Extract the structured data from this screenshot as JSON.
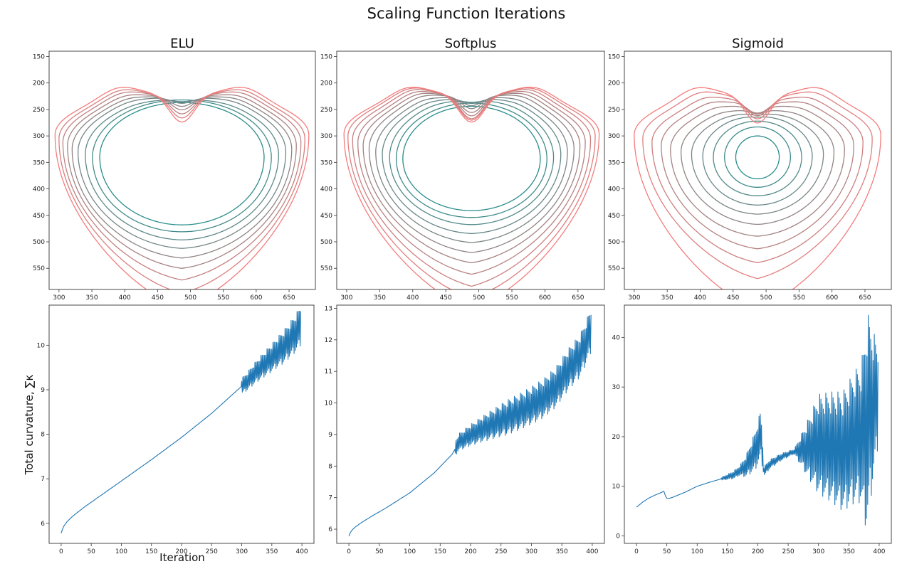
{
  "suptitle": "Scaling Function Iterations",
  "ylabel": "Total curvature, ∑κ",
  "xlabel": "Iteration",
  "colors": {
    "outer": "#f47c7c",
    "inner": "#2a8c8c",
    "series": "#1f77b4",
    "axes": "#333333"
  },
  "chart_data": [
    {
      "type": "line",
      "title": "ELU",
      "xlim": [
        285,
        690
      ],
      "ylim": [
        590,
        140
      ],
      "invert_y": true,
      "xticks": [
        300,
        350,
        400,
        450,
        500,
        550,
        600,
        650
      ],
      "yticks": [
        150,
        200,
        250,
        300,
        350,
        400,
        450,
        500,
        550
      ],
      "contours": [
        {
          "cx": 487,
          "cy": 340,
          "rx": 125,
          "top": 237,
          "bottom": 468,
          "dip": 0
        },
        {
          "cx": 487,
          "cy": 340,
          "rx": 136,
          "top": 232,
          "bottom": 481,
          "dip": 0
        },
        {
          "cx": 487,
          "cy": 335,
          "rx": 147,
          "top": 230,
          "bottom": 494,
          "dip": 0.05
        },
        {
          "cx": 487,
          "cy": 330,
          "rx": 158,
          "top": 226,
          "bottom": 506,
          "dip": 0.12
        },
        {
          "cx": 487,
          "cy": 325,
          "rx": 167,
          "top": 224,
          "bottom": 519,
          "dip": 0.2
        },
        {
          "cx": 487,
          "cy": 318,
          "rx": 174,
          "top": 222,
          "bottom": 531,
          "dip": 0.3
        },
        {
          "cx": 487,
          "cy": 312,
          "rx": 181,
          "top": 220,
          "bottom": 543,
          "dip": 0.42
        },
        {
          "cx": 487,
          "cy": 305,
          "rx": 187,
          "top": 219,
          "bottom": 556,
          "dip": 0.55
        },
        {
          "cx": 487,
          "cy": 298,
          "rx": 193,
          "top": 218,
          "bottom": 569,
          "dip": 0.7
        }
      ]
    },
    {
      "type": "line",
      "title": "Softplus",
      "xlim": [
        285,
        690
      ],
      "ylim": [
        590,
        140
      ],
      "invert_y": true,
      "xticks": [
        300,
        350,
        400,
        450,
        500,
        550,
        600,
        650
      ],
      "yticks": [
        150,
        200,
        250,
        300,
        350,
        400,
        450,
        500,
        550
      ],
      "contours": [
        {
          "cx": 489,
          "cy": 343,
          "rx": 104,
          "top": 244,
          "bottom": 441,
          "dip": 0
        },
        {
          "cx": 489,
          "cy": 343,
          "rx": 114,
          "top": 238,
          "bottom": 454,
          "dip": 0
        },
        {
          "cx": 489,
          "cy": 340,
          "rx": 124,
          "top": 232,
          "bottom": 466,
          "dip": 0.04
        },
        {
          "cx": 489,
          "cy": 335,
          "rx": 135,
          "top": 228,
          "bottom": 480,
          "dip": 0.1
        },
        {
          "cx": 489,
          "cy": 330,
          "rx": 145,
          "top": 225,
          "bottom": 493,
          "dip": 0.17
        },
        {
          "cx": 489,
          "cy": 324,
          "rx": 155,
          "top": 222,
          "bottom": 506,
          "dip": 0.26
        },
        {
          "cx": 489,
          "cy": 318,
          "rx": 164,
          "top": 221,
          "bottom": 518,
          "dip": 0.36
        },
        {
          "cx": 489,
          "cy": 312,
          "rx": 172,
          "top": 220,
          "bottom": 531,
          "dip": 0.46
        },
        {
          "cx": 489,
          "cy": 306,
          "rx": 180,
          "top": 219,
          "bottom": 544,
          "dip": 0.56
        },
        {
          "cx": 489,
          "cy": 300,
          "rx": 187,
          "top": 218,
          "bottom": 557,
          "dip": 0.64
        },
        {
          "cx": 489,
          "cy": 296,
          "rx": 193,
          "top": 218,
          "bottom": 569,
          "dip": 0.72
        }
      ]
    },
    {
      "type": "line",
      "title": "Sigmoid",
      "xlim": [
        285,
        690
      ],
      "ylim": [
        590,
        140
      ],
      "invert_y": true,
      "xticks": [
        300,
        350,
        400,
        450,
        500,
        550,
        600,
        650
      ],
      "yticks": [
        150,
        200,
        250,
        300,
        350,
        400,
        450,
        500,
        550
      ],
      "contours": [
        {
          "cx": 487,
          "cy": 340,
          "rx": 33,
          "top": 300,
          "bottom": 381,
          "dip": 0
        },
        {
          "cx": 487,
          "cy": 340,
          "rx": 50,
          "top": 283,
          "bottom": 397,
          "dip": 0
        },
        {
          "cx": 487,
          "cy": 340,
          "rx": 67,
          "top": 272,
          "bottom": 413,
          "dip": 0
        },
        {
          "cx": 487,
          "cy": 338,
          "rx": 83,
          "top": 263,
          "bottom": 430,
          "dip": 0.02
        },
        {
          "cx": 487,
          "cy": 334,
          "rx": 100,
          "top": 257,
          "bottom": 446,
          "dip": 0.05
        },
        {
          "cx": 487,
          "cy": 330,
          "rx": 116,
          "top": 250,
          "bottom": 463,
          "dip": 0.1
        },
        {
          "cx": 487,
          "cy": 325,
          "rx": 132,
          "top": 242,
          "bottom": 481,
          "dip": 0.18
        },
        {
          "cx": 487,
          "cy": 318,
          "rx": 146,
          "top": 235,
          "bottom": 498,
          "dip": 0.28
        },
        {
          "cx": 487,
          "cy": 312,
          "rx": 160,
          "top": 229,
          "bottom": 515,
          "dip": 0.4
        },
        {
          "cx": 487,
          "cy": 305,
          "rx": 174,
          "top": 223,
          "bottom": 532,
          "dip": 0.55
        },
        {
          "cx": 487,
          "cy": 298,
          "rx": 187,
          "top": 219,
          "bottom": 569,
          "dip": 0.72
        }
      ]
    },
    {
      "type": "line",
      "xlim": [
        -20,
        420
      ],
      "ylim": [
        5.55,
        10.9
      ],
      "xticks": [
        0,
        50,
        100,
        150,
        200,
        250,
        300,
        350,
        400
      ],
      "yticks": [
        6,
        7,
        8,
        9,
        10
      ],
      "x": [
        0,
        2,
        5,
        10,
        20,
        40,
        60,
        100,
        150,
        200,
        250,
        300,
        310,
        320,
        330,
        340,
        350,
        360,
        370,
        380,
        390,
        398
      ],
      "y": [
        5.78,
        5.86,
        5.95,
        6.04,
        6.17,
        6.38,
        6.57,
        6.95,
        7.43,
        7.93,
        8.47,
        9.08,
        9.2,
        9.35,
        9.48,
        9.6,
        9.72,
        9.85,
        9.97,
        10.12,
        10.28,
        10.45
      ],
      "noise": [
        [
          300,
          0.18
        ],
        [
          398,
          0.45
        ]
      ]
    },
    {
      "type": "line",
      "xlim": [
        -20,
        420
      ],
      "ylim": [
        5.55,
        13.1
      ],
      "xticks": [
        0,
        50,
        100,
        150,
        200,
        250,
        300,
        350,
        400
      ],
      "yticks": [
        6,
        7,
        8,
        9,
        10,
        11,
        12,
        13
      ],
      "x": [
        0,
        2,
        5,
        10,
        20,
        40,
        60,
        100,
        140,
        170,
        180,
        200,
        220,
        250,
        280,
        300,
        320,
        340,
        360,
        380,
        398
      ],
      "y": [
        5.78,
        5.88,
        5.97,
        6.06,
        6.2,
        6.44,
        6.66,
        7.15,
        7.78,
        8.38,
        8.75,
        8.98,
        9.18,
        9.45,
        9.72,
        9.92,
        10.15,
        10.5,
        11.05,
        11.5,
        12.3
      ],
      "noise": [
        [
          175,
          0.25
        ],
        [
          260,
          0.55
        ],
        [
          398,
          0.7
        ]
      ]
    },
    {
      "type": "line",
      "xlim": [
        -20,
        420
      ],
      "ylim": [
        -1.5,
        46.5
      ],
      "xticks": [
        0,
        50,
        100,
        150,
        200,
        250,
        300,
        350,
        400
      ],
      "yticks": [
        0,
        10,
        20,
        30,
        40
      ],
      "x": [
        0,
        10,
        20,
        30,
        40,
        45,
        48,
        50,
        55,
        60,
        80,
        100,
        120,
        140,
        160,
        180,
        195,
        205,
        210,
        220,
        240,
        260,
        280,
        300,
        320,
        340,
        360,
        375,
        385,
        398
      ],
      "y": [
        5.8,
        6.8,
        7.6,
        8.2,
        8.7,
        9.0,
        8.0,
        7.6,
        7.6,
        7.8,
        8.8,
        10.0,
        10.8,
        11.5,
        12.3,
        14.0,
        17.0,
        20.5,
        13.0,
        14.5,
        16.0,
        17.0,
        17.5,
        18.5,
        18.0,
        17.0,
        20.0,
        21.0,
        25.0,
        28.0
      ],
      "noise": [
        [
          140,
          0.3
        ],
        [
          170,
          1.0
        ],
        [
          205,
          5.0
        ],
        [
          210,
          1.0
        ],
        [
          260,
          0.5
        ],
        [
          300,
          10.0
        ],
        [
          340,
          12.0
        ],
        [
          370,
          14.0
        ],
        [
          380,
          22.0
        ],
        [
          398,
          10.0
        ]
      ]
    }
  ]
}
